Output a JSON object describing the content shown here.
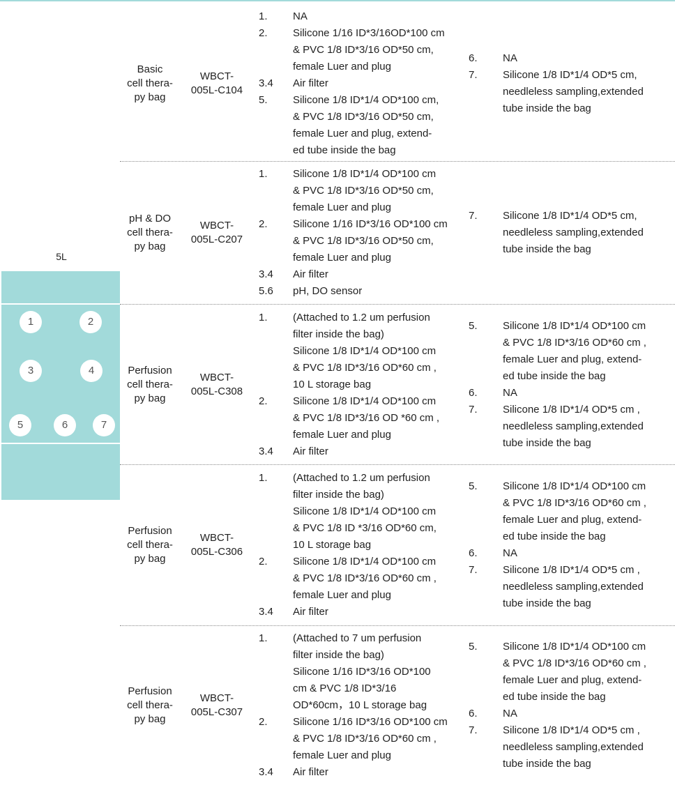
{
  "volume": "5L",
  "bag_diagram": {
    "color": "#a2dada",
    "ports": [
      "1",
      "2",
      "3",
      "4",
      "5",
      "6",
      "7"
    ]
  },
  "rows": [
    {
      "name": [
        "Basic",
        "cell thera-",
        "py bag"
      ],
      "code": [
        "WBCT-",
        "005L-C104"
      ],
      "spec_a": [
        {
          "num": "1.",
          "lines": [
            "NA"
          ]
        },
        {
          "num": "2.",
          "lines": [
            "Silicone 1/16 ID*3/16OD*100 cm",
            "& PVC 1/8 ID*3/16 OD*50 cm,",
            "female Luer and plug"
          ]
        },
        {
          "num": "3.4",
          "lines": [
            "Air filter"
          ]
        },
        {
          "num": "5.",
          "lines": [
            "Silicone 1/8 ID*1/4 OD*100 cm,",
            "& PVC 1/8 ID*3/16 OD*50 cm,",
            "female Luer and plug, extend-",
            "ed tube inside the bag"
          ]
        }
      ],
      "spec_b": [
        {
          "num": "6.",
          "lines": [
            "NA"
          ]
        },
        {
          "num": "7.",
          "lines": [
            "Silicone 1/8 ID*1/4 OD*5 cm,",
            "needleless sampling,extended",
            "tube inside the bag"
          ]
        }
      ]
    },
    {
      "name": [
        "pH & DO",
        "cell thera-",
        "py bag"
      ],
      "code": [
        "WBCT-",
        "005L-C207"
      ],
      "spec_a": [
        {
          "num": "1.",
          "lines": [
            "Silicone 1/8 ID*1/4 OD*100 cm",
            "& PVC 1/8 ID*3/16 OD*50 cm,",
            "female Luer and plug"
          ]
        },
        {
          "num": "2.",
          "lines": [
            "Silicone 1/16 ID*3/16 OD*100 cm",
            "& PVC 1/8 ID*3/16 OD*50 cm,",
            "female Luer and plug"
          ]
        },
        {
          "num": "3.4",
          "lines": [
            "Air filter"
          ]
        },
        {
          "num": "5.6",
          "lines": [
            "pH, DO sensor"
          ]
        }
      ],
      "spec_b": [
        {
          "num": "7.",
          "lines": [
            "Silicone 1/8 ID*1/4 OD*5 cm,",
            "needleless sampling,extended",
            "tube inside the bag"
          ]
        }
      ]
    },
    {
      "name": [
        "Perfusion",
        "cell thera-",
        "py bag"
      ],
      "code": [
        "WBCT-",
        "005L-C308"
      ],
      "spec_a": [
        {
          "num": "1.",
          "lines": [
            "(Attached to 1.2 um perfusion",
            "filter inside the bag)",
            "Silicone 1/8 ID*1/4 OD*100 cm",
            "& PVC 1/8 ID*3/16 OD*60 cm ,",
            "10 L storage bag"
          ]
        },
        {
          "num": "2.",
          "lines": [
            "Silicone 1/8 ID*1/4 OD*100 cm",
            "& PVC 1/8 ID*3/16 OD *60 cm ,",
            "female Luer and plug"
          ]
        },
        {
          "num": "3.4",
          "lines": [
            "Air filter"
          ]
        }
      ],
      "spec_b": [
        {
          "num": "5.",
          "lines": [
            "Silicone 1/8 ID*1/4 OD*100 cm",
            "& PVC 1/8 ID*3/16 OD*60 cm ,",
            "female Luer and plug, extend-",
            "ed tube inside the bag"
          ]
        },
        {
          "num": "6.",
          "lines": [
            "NA"
          ]
        },
        {
          "num": "7.",
          "lines": [
            "Silicone 1/8 ID*1/4 OD*5 cm ,",
            "needleless sampling,extended",
            "tube inside the bag"
          ]
        }
      ]
    },
    {
      "name": [
        "Perfusion",
        "cell thera-",
        "py bag"
      ],
      "code": [
        "WBCT-",
        "005L-C306"
      ],
      "spec_a": [
        {
          "num": "1.",
          "lines": [
            "(Attached to 1.2 um perfusion",
            "filter inside the bag)",
            "Silicone 1/8 ID*1/4 OD*100 cm",
            "& PVC 1/8 ID *3/16 OD*60 cm,",
            "10 L storage bag"
          ]
        },
        {
          "num": "2.",
          "lines": [
            "Silicone 1/8 ID*1/4 OD*100 cm",
            "& PVC 1/8 ID*3/16 OD*60 cm ,",
            "female Luer and plug"
          ]
        },
        {
          "num": "3.4",
          "lines": [
            "Air filter"
          ]
        }
      ],
      "spec_b": [
        {
          "num": "5.",
          "lines": [
            "Silicone 1/8 ID*1/4 OD*100 cm",
            "& PVC 1/8 ID*3/16 OD*60 cm ,",
            "female Luer and plug, extend-",
            "ed tube inside the bag"
          ]
        },
        {
          "num": "6.",
          "lines": [
            "NA"
          ]
        },
        {
          "num": "7.",
          "lines": [
            "Silicone 1/8 ID*1/4 OD*5 cm ,",
            "needleless sampling,extended",
            "tube inside the bag"
          ]
        }
      ]
    },
    {
      "name": [
        "Perfusion",
        "cell thera-",
        "py bag"
      ],
      "code": [
        "WBCT-",
        "005L-C307"
      ],
      "spec_a": [
        {
          "num": "1.",
          "lines": [
            "(Attached to 7 um perfusion",
            "filter inside the bag)",
            "Silicone 1/16 ID*3/16 OD*100",
            "cm & PVC 1/8 ID*3/16",
            "OD*60cm，10 L storage bag"
          ]
        },
        {
          "num": "2.",
          "lines": [
            "Silicone 1/16 ID*3/16 OD*100 cm",
            "& PVC 1/8 ID*3/16 OD*60 cm ,",
            "female Luer and plug"
          ]
        },
        {
          "num": "3.4",
          "lines": [
            "Air filter"
          ]
        }
      ],
      "spec_b": [
        {
          "num": "5.",
          "lines": [
            "Silicone 1/8 ID*1/4 OD*100 cm",
            "& PVC 1/8 ID*3/16 OD*60 cm ,",
            "female Luer and plug, extend-",
            "ed tube inside the bag"
          ]
        },
        {
          "num": "6.",
          "lines": [
            "NA"
          ]
        },
        {
          "num": "7.",
          "lines": [
            "Silicone 1/8 ID*1/4 OD*5 cm ,",
            "needleless sampling,extended",
            "tube inside the bag"
          ]
        }
      ]
    }
  ]
}
